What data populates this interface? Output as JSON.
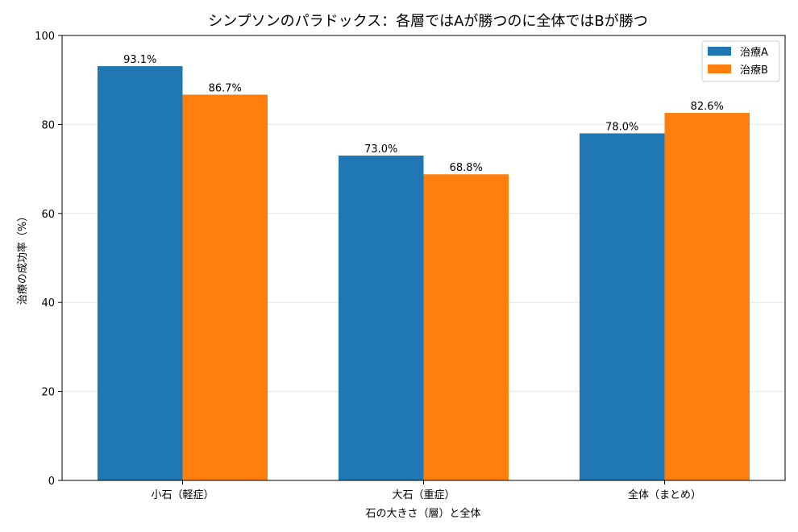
{
  "chart_data": {
    "type": "bar",
    "title": "シンプソンのパラドックス：各層ではAが勝つのに全体ではBが勝つ",
    "xlabel": "石の大きさ（層）と全体",
    "ylabel": "治療の成功率（%）",
    "categories": [
      "小石（軽症）",
      "大石（重症）",
      "全体（まとめ）"
    ],
    "series": [
      {
        "name": "治療A",
        "color": "#1f77b4",
        "values": [
          93.1,
          73.0,
          78.0
        ],
        "labels": [
          "93.1%",
          "73.0%",
          "78.0%"
        ]
      },
      {
        "name": "治療B",
        "color": "#ff7f0e",
        "values": [
          86.7,
          68.8,
          82.6
        ],
        "labels": [
          "86.7%",
          "68.8%",
          "82.6%"
        ]
      }
    ],
    "ylim": [
      0,
      100
    ],
    "yticks": [
      0,
      20,
      40,
      60,
      80,
      100
    ],
    "grid": "horizontal",
    "legend": "top-right"
  }
}
